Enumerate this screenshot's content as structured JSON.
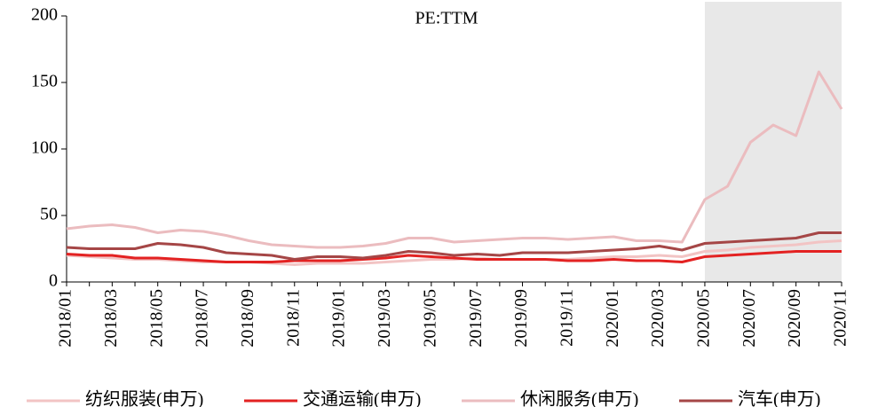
{
  "chart_data": {
    "type": "line",
    "title": "PE:TTM",
    "categories": [
      "2018/01",
      null,
      "2018/03",
      null,
      "2018/05",
      null,
      "2018/07",
      null,
      "2018/09",
      null,
      "2018/11",
      null,
      "2019/01",
      null,
      "2019/03",
      null,
      "2019/05",
      null,
      "2019/07",
      null,
      "2019/09",
      null,
      "2019/11",
      null,
      "2020/01",
      null,
      "2020/03",
      null,
      "2020/05",
      null,
      "2020/07",
      null,
      "2020/09",
      null,
      "2020/11"
    ],
    "series": [
      {
        "name": "纺织服装(申万)",
        "color": "#f2c4c4",
        "values": [
          20,
          19,
          18,
          17,
          17,
          16,
          15,
          15,
          15,
          14,
          13,
          14,
          14,
          14,
          15,
          16,
          17,
          17,
          18,
          17,
          17,
          17,
          17,
          18,
          19,
          19,
          20,
          19,
          23,
          24,
          26,
          27,
          28,
          30,
          31
        ]
      },
      {
        "name": "交通运输(申万)",
        "color": "#e32222",
        "values": [
          21,
          20,
          20,
          18,
          18,
          17,
          16,
          15,
          15,
          15,
          16,
          16,
          16,
          17,
          18,
          20,
          19,
          18,
          17,
          17,
          17,
          17,
          16,
          16,
          17,
          16,
          16,
          15,
          19,
          20,
          21,
          22,
          23,
          23,
          23
        ]
      },
      {
        "name": "休闲服务(申万)",
        "color": "#ebbcbf",
        "values": [
          40,
          42,
          43,
          41,
          37,
          39,
          38,
          35,
          31,
          28,
          27,
          26,
          26,
          27,
          29,
          33,
          33,
          30,
          31,
          32,
          33,
          33,
          32,
          33,
          34,
          31,
          31,
          30,
          62,
          72,
          105,
          118,
          110,
          158,
          130
        ]
      },
      {
        "name": "汽车(申万)",
        "color": "#a54646",
        "values": [
          26,
          25,
          25,
          25,
          29,
          28,
          26,
          22,
          21,
          20,
          17,
          19,
          19,
          18,
          20,
          23,
          22,
          20,
          21,
          20,
          22,
          22,
          22,
          23,
          24,
          25,
          27,
          24,
          29,
          30,
          31,
          32,
          33,
          37,
          37
        ]
      }
    ],
    "ylim": [
      0,
      200
    ],
    "yticks": [
      0,
      50,
      100,
      150,
      200
    ],
    "shaded_range": [
      "2020/05",
      "2020/11"
    ],
    "shade_color": "#e8e8e8",
    "legend": "bottom",
    "grid": false
  }
}
